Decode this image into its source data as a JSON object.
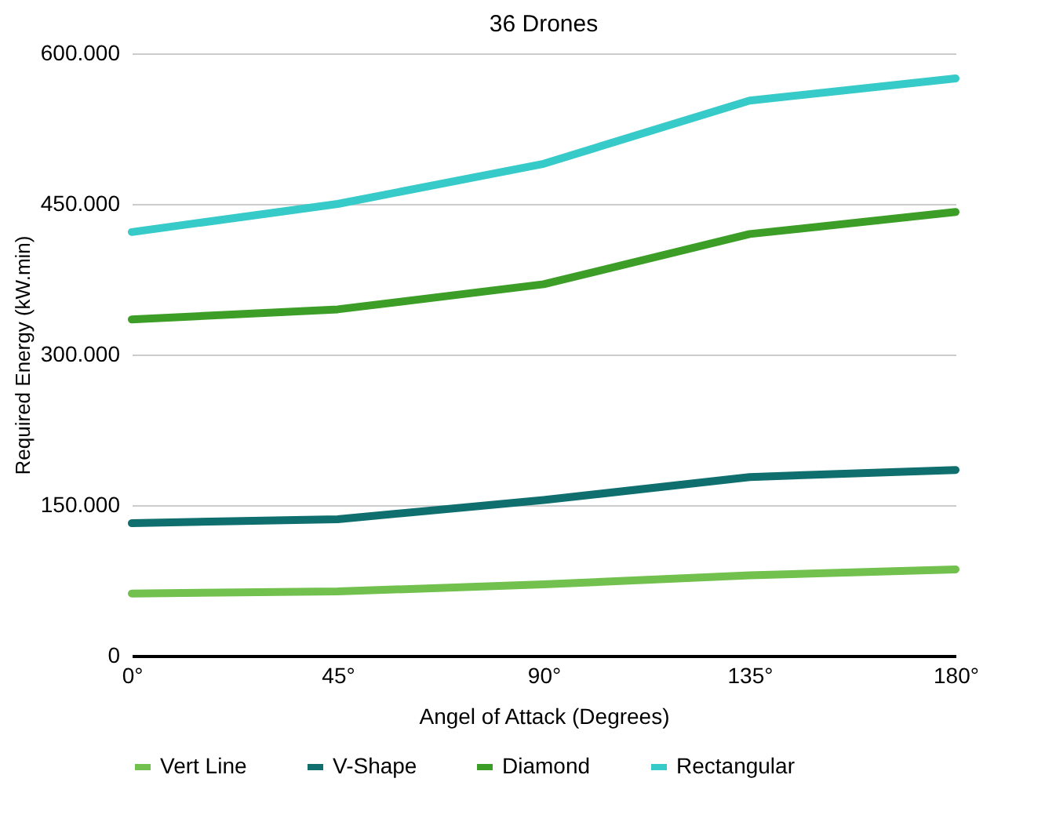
{
  "chart_data": {
    "type": "line",
    "title": "36 Drones",
    "xlabel": "Angel of Attack (Degrees)",
    "ylabel": "Required Energy (kW.min)",
    "categories": [
      "0°",
      "45°",
      "90°",
      "135°",
      "180°"
    ],
    "series": [
      {
        "name": "Vert Line",
        "color": "#72c04d",
        "values": [
          62000,
          64000,
          71000,
          80000,
          86000
        ]
      },
      {
        "name": "V-Shape",
        "color": "#0f6e6e",
        "values": [
          132000,
          136000,
          155000,
          178000,
          185000
        ]
      },
      {
        "name": "Diamond",
        "color": "#3c9e27",
        "values": [
          335000,
          345000,
          370000,
          420000,
          442000
        ]
      },
      {
        "name": "Rectangular",
        "color": "#36cac8",
        "values": [
          422000,
          450000,
          490000,
          553000,
          575000
        ]
      }
    ],
    "ylim": [
      0,
      600000
    ],
    "yticks": [
      0,
      {
        "value": 150000,
        "label": "150.000"
      },
      {
        "value": 300000,
        "label": "300.000"
      },
      {
        "value": 450000,
        "label": "450.000"
      },
      {
        "value": 600000,
        "label": "600.000"
      }
    ],
    "grid": "y",
    "legend": "bottom",
    "marker": "none",
    "line_style": "solid"
  }
}
